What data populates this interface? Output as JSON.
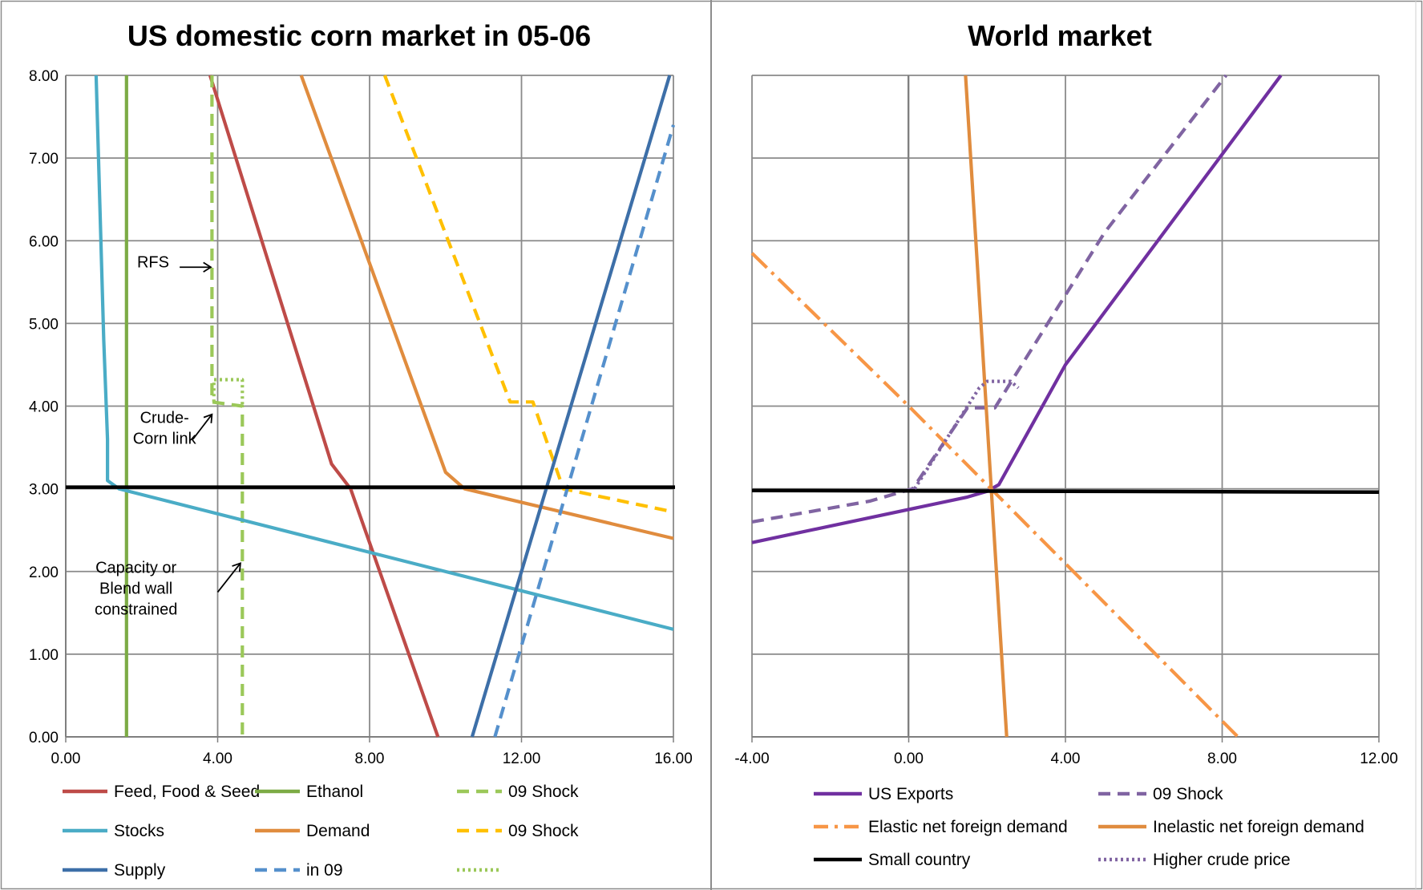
{
  "chart_data": [
    {
      "type": "line",
      "title": "US domestic corn market in 05-06",
      "xlim": [
        0,
        16
      ],
      "ylim": [
        0,
        8
      ],
      "x_ticks": [
        "0.00",
        "4.00",
        "8.00",
        "12.00",
        "16.00"
      ],
      "y_ticks": [
        "0.00",
        "1.00",
        "2.00",
        "3.00",
        "4.00",
        "5.00",
        "6.00",
        "7.00",
        "8.00"
      ],
      "grid": true,
      "series": [
        {
          "name": "Feed, Food & Seed",
          "color": "#be4b48",
          "style": "solid",
          "points": [
            [
              3.8,
              8.0
            ],
            [
              7.0,
              3.3
            ],
            [
              7.5,
              3.0
            ],
            [
              9.8,
              0.0
            ]
          ]
        },
        {
          "name": "Ethanol",
          "color": "#7cab45",
          "style": "solid",
          "points": [
            [
              1.6,
              8.0
            ],
            [
              1.6,
              0.0
            ]
          ]
        },
        {
          "name": "09 Shock",
          "color": "#9bc859",
          "style": "dashed",
          "points": [
            [
              3.85,
              8.0
            ],
            [
              3.85,
              4.05
            ],
            [
              4.65,
              4.0
            ],
            [
              4.65,
              0.0
            ]
          ]
        },
        {
          "name": "Stocks",
          "color": "#4aacc6",
          "style": "solid",
          "points": [
            [
              0.8,
              8.0
            ],
            [
              1.0,
              4.8
            ],
            [
              1.1,
              3.6
            ],
            [
              1.1,
              3.1
            ],
            [
              1.4,
              3.0
            ],
            [
              16.0,
              1.3
            ]
          ]
        },
        {
          "name": "Demand",
          "color": "#e08c3e",
          "style": "solid",
          "points": [
            [
              6.2,
              8.0
            ],
            [
              10.0,
              3.2
            ],
            [
              10.5,
              3.0
            ],
            [
              16.0,
              2.4
            ]
          ]
        },
        {
          "name": "09 Shock",
          "color": "#ffc000",
          "style": "dashed",
          "points": [
            [
              8.4,
              8.0
            ],
            [
              11.7,
              4.05
            ],
            [
              12.3,
              4.05
            ],
            [
              13.1,
              3.0
            ],
            [
              16.0,
              2.72
            ]
          ]
        },
        {
          "name": "Supply",
          "color": "#3d6fa8",
          "style": "solid",
          "points": [
            [
              10.7,
              0.0
            ],
            [
              15.9,
              8.0
            ]
          ]
        },
        {
          "name": "in 09",
          "color": "#5590cc",
          "style": "dashed",
          "points": [
            [
              11.3,
              0.0
            ],
            [
              16.0,
              7.4
            ]
          ]
        },
        {
          "name": "",
          "color": "#9bc859",
          "style": "dotted",
          "points": [
            [
              3.9,
              4.05
            ],
            [
              3.9,
              4.32
            ],
            [
              4.65,
              4.32
            ],
            [
              4.65,
              4.0
            ]
          ]
        },
        {
          "name": "",
          "color": "#000000",
          "style": "solid",
          "points": [
            [
              0.0,
              3.02
            ],
            [
              16.8,
              3.02
            ]
          ]
        }
      ],
      "annotations": [
        {
          "text": "RFS",
          "x": 2.3,
          "y": 5.68
        },
        {
          "lines": [
            "Crude-",
            "Corn link"
          ],
          "x": 2.6,
          "y": 3.68
        },
        {
          "lines": [
            "Capacity or",
            "Blend wall",
            "constrained"
          ],
          "x": 1.85,
          "y": 1.75
        }
      ],
      "arrows": [
        {
          "from": [
            3.0,
            5.68
          ],
          "to": [
            3.82,
            5.68
          ]
        },
        {
          "from": [
            3.35,
            3.6
          ],
          "to": [
            3.85,
            3.9
          ]
        },
        {
          "from": [
            4.0,
            1.75
          ],
          "to": [
            4.6,
            2.1
          ]
        }
      ],
      "legend": [
        {
          "label": "Feed, Food & Seed",
          "color": "#be4b48",
          "style": "solid",
          "col": 0,
          "row": 0
        },
        {
          "label": "Ethanol",
          "color": "#7cab45",
          "style": "solid",
          "col": 1,
          "row": 0
        },
        {
          "label": "09 Shock",
          "color": "#9bc859",
          "style": "dashed",
          "col": 2,
          "row": 0
        },
        {
          "label": "Stocks",
          "color": "#4aacc6",
          "style": "solid",
          "col": 0,
          "row": 1
        },
        {
          "label": "Demand",
          "color": "#e08c3e",
          "style": "solid",
          "col": 1,
          "row": 1
        },
        {
          "label": "09 Shock",
          "color": "#ffc000",
          "style": "dashed",
          "col": 2,
          "row": 1
        },
        {
          "label": "Supply",
          "color": "#3d6fa8",
          "style": "solid",
          "col": 0,
          "row": 2
        },
        {
          "label": "in 09",
          "color": "#5590cc",
          "style": "dashed",
          "col": 1,
          "row": 2
        },
        {
          "label": "",
          "color": "#9bc859",
          "style": "dotted",
          "col": 2,
          "row": 2
        }
      ]
    },
    {
      "type": "line",
      "title": "World market",
      "xlim": [
        -4,
        12
      ],
      "ylim": [
        0,
        8
      ],
      "x_ticks": [
        "-4.00",
        "0.00",
        "4.00",
        "8.00",
        "12.00"
      ],
      "y_ticks": [],
      "grid": true,
      "series": [
        {
          "name": "US Exports",
          "color": "#7030a0",
          "style": "solid",
          "points": [
            [
              -4.0,
              2.35
            ],
            [
              1.5,
              2.9
            ],
            [
              2.0,
              2.97
            ],
            [
              2.3,
              3.05
            ],
            [
              4.0,
              4.5
            ],
            [
              9.5,
              8.0
            ]
          ]
        },
        {
          "name": "09 Shock",
          "color": "#8064a2",
          "style": "dashed",
          "points": [
            [
              -4.0,
              2.6
            ],
            [
              -1.0,
              2.85
            ],
            [
              0.1,
              3.0
            ],
            [
              1.5,
              3.98
            ],
            [
              2.2,
              3.98
            ],
            [
              5.0,
              6.1
            ],
            [
              8.1,
              8.0
            ]
          ]
        },
        {
          "name": "Elastic net foreign demand",
          "color": "#f79646",
          "style": "dashdot",
          "points": [
            [
              -4.0,
              5.85
            ],
            [
              0.0,
              4.0
            ],
            [
              8.4,
              0.0
            ]
          ]
        },
        {
          "name": "Inelastic net foreign demand",
          "color": "#e08c3e",
          "style": "solid",
          "points": [
            [
              1.45,
              8.0
            ],
            [
              2.5,
              0.0
            ]
          ]
        },
        {
          "name": "Small country",
          "color": "#000000",
          "style": "solid",
          "points": [
            [
              -4.0,
              2.98
            ],
            [
              12.0,
              2.96
            ]
          ]
        },
        {
          "name": "Higher crude price",
          "color": "#8064a2",
          "style": "dotted",
          "points": [
            [
              0.15,
              3.0
            ],
            [
              1.8,
              4.22
            ],
            [
              2.0,
              4.3
            ],
            [
              2.6,
              4.3
            ],
            [
              2.8,
              4.22
            ]
          ]
        }
      ],
      "legend": [
        {
          "label": "US Exports",
          "color": "#7030a0",
          "style": "solid",
          "col": 0,
          "row": 0
        },
        {
          "label": "09 Shock",
          "color": "#8064a2",
          "style": "dashed",
          "col": 1,
          "row": 0
        },
        {
          "label": "Elastic net foreign demand",
          "color": "#f79646",
          "style": "dashdot",
          "col": 0,
          "row": 1
        },
        {
          "label": "Inelastic net foreign demand",
          "color": "#e08c3e",
          "style": "solid",
          "col": 1,
          "row": 1
        },
        {
          "label": "Small country",
          "color": "#000000",
          "style": "solid",
          "col": 0,
          "row": 2
        },
        {
          "label": "Higher crude price",
          "color": "#8064a2",
          "style": "dotted",
          "col": 1,
          "row": 2
        }
      ]
    }
  ]
}
